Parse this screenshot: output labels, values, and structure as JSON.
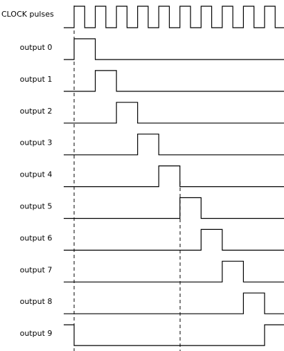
{
  "clock_label": "CLOCK pulses",
  "outputs": [
    "output 0",
    "output 1",
    "output 2",
    "output 3",
    "output 4",
    "output 5",
    "output 6",
    "output 7",
    "output 8",
    "output 9"
  ]
}
